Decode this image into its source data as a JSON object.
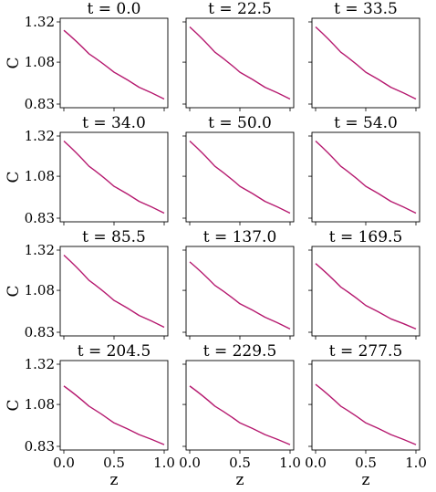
{
  "chart_data": {
    "type": "line",
    "layout": "4x3 grid of small multiples",
    "xlabel": "z",
    "ylabel": "C",
    "xlim": [
      0.0,
      1.0
    ],
    "ylim": [
      0.83,
      1.32
    ],
    "xticks": [
      "0.0",
      "0.5",
      "1.0"
    ],
    "yticks": [
      "0.83",
      "1.08",
      "1.32"
    ],
    "line_color": "#b5186e",
    "panels": [
      {
        "title": "t = 0.0",
        "x": [
          0.0,
          0.25,
          0.5,
          0.75,
          1.0
        ],
        "y": [
          1.27,
          1.13,
          1.02,
          0.93,
          0.86
        ]
      },
      {
        "title": "t = 22.5",
        "x": [
          0.0,
          0.25,
          0.5,
          0.75,
          1.0
        ],
        "y": [
          1.29,
          1.14,
          1.02,
          0.93,
          0.86
        ]
      },
      {
        "title": "t = 33.5",
        "x": [
          0.0,
          0.25,
          0.5,
          0.75,
          1.0
        ],
        "y": [
          1.29,
          1.14,
          1.02,
          0.93,
          0.86
        ]
      },
      {
        "title": "t = 34.0",
        "x": [
          0.0,
          0.25,
          0.5,
          0.75,
          1.0
        ],
        "y": [
          1.29,
          1.14,
          1.02,
          0.93,
          0.86
        ]
      },
      {
        "title": "t = 50.0",
        "x": [
          0.0,
          0.25,
          0.5,
          0.75,
          1.0
        ],
        "y": [
          1.29,
          1.14,
          1.02,
          0.93,
          0.86
        ]
      },
      {
        "title": "t = 54.0",
        "x": [
          0.0,
          0.25,
          0.5,
          0.75,
          1.0
        ],
        "y": [
          1.29,
          1.14,
          1.02,
          0.93,
          0.86
        ]
      },
      {
        "title": "t = 85.5",
        "x": [
          0.0,
          0.25,
          0.5,
          0.75,
          1.0
        ],
        "y": [
          1.29,
          1.14,
          1.02,
          0.93,
          0.86
        ]
      },
      {
        "title": "t = 137.0",
        "x": [
          0.0,
          0.25,
          0.5,
          0.75,
          1.0
        ],
        "y": [
          1.25,
          1.11,
          1.0,
          0.92,
          0.85
        ]
      },
      {
        "title": "t = 169.5",
        "x": [
          0.0,
          0.25,
          0.5,
          0.75,
          1.0
        ],
        "y": [
          1.24,
          1.1,
          0.99,
          0.91,
          0.85
        ]
      },
      {
        "title": "t = 204.5",
        "x": [
          0.0,
          0.25,
          0.5,
          0.75,
          1.0
        ],
        "y": [
          1.19,
          1.07,
          0.97,
          0.9,
          0.84
        ]
      },
      {
        "title": "t = 229.5",
        "x": [
          0.0,
          0.25,
          0.5,
          0.75,
          1.0
        ],
        "y": [
          1.19,
          1.07,
          0.97,
          0.9,
          0.84
        ]
      },
      {
        "title": "t = 277.5",
        "x": [
          0.0,
          0.25,
          0.5,
          0.75,
          1.0
        ],
        "y": [
          1.2,
          1.07,
          0.97,
          0.9,
          0.84
        ]
      }
    ]
  }
}
